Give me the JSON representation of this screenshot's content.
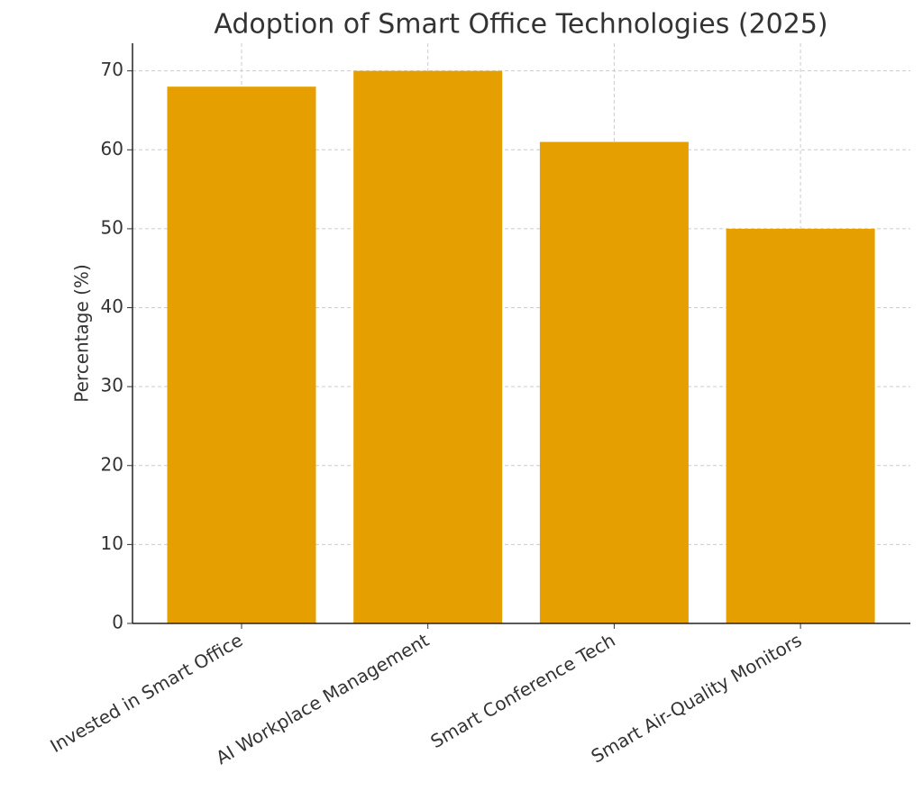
{
  "chart_data": {
    "type": "bar",
    "title": "Adoption of Smart Office Technologies (2025)",
    "y_label": "Percentage (%)",
    "categories": [
      "Invested in Smart Office",
      "AI Workplace Management",
      "Smart Conference Tech",
      "Smart Air-Quality Monitors"
    ],
    "values": [
      68,
      70,
      61,
      50
    ],
    "color": "#e5a000",
    "ylim": [
      0,
      73.5
    ],
    "yticks": [
      0,
      10,
      20,
      30,
      40,
      50,
      60,
      70
    ],
    "grid": true
  }
}
